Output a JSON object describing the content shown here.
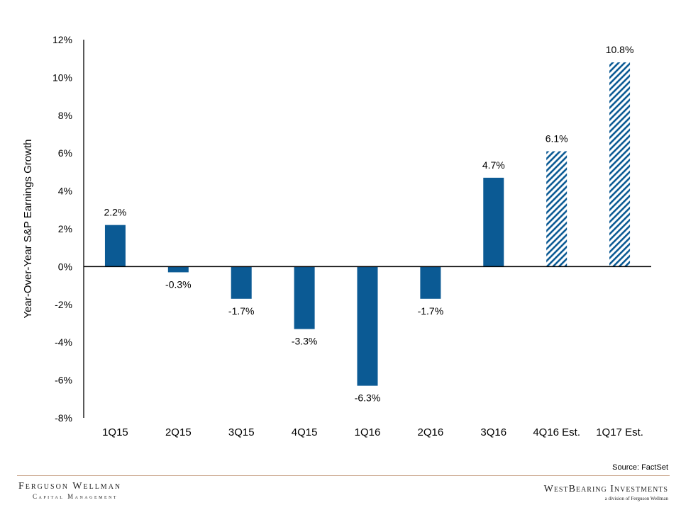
{
  "chart_data": {
    "type": "bar",
    "ylabel": "Year-Over-Year S&P Earnings Growth",
    "xlabel": "",
    "ylim": [
      -8,
      12
    ],
    "yticks": [
      12,
      10,
      8,
      6,
      4,
      2,
      0,
      -2,
      -4,
      -6,
      -8
    ],
    "ytick_labels": [
      "12%",
      "10%",
      "8%",
      "6%",
      "4%",
      "2%",
      "0%",
      "-2%",
      "-4%",
      "-6%",
      "-8%"
    ],
    "categories": [
      "1Q15",
      "2Q15",
      "3Q15",
      "4Q15",
      "1Q16",
      "2Q16",
      "3Q16",
      "4Q16 Est.",
      "1Q17 Est."
    ],
    "values": [
      2.2,
      -0.3,
      -1.7,
      -3.3,
      -6.3,
      -1.7,
      4.7,
      6.1,
      10.8
    ],
    "data_labels": [
      "2.2%",
      "-0.3%",
      "-1.7%",
      "-3.3%",
      "-6.3%",
      "-1.7%",
      "4.7%",
      "6.1%",
      "10.8%"
    ],
    "estimate_flags": [
      false,
      false,
      false,
      false,
      false,
      false,
      false,
      true,
      true
    ],
    "bar_color": "#0b5a94",
    "estimate_style": "diagonal-hatch",
    "grid": false,
    "legend": "none"
  },
  "source": "Source: FactSet",
  "logos": {
    "left_line1": "Ferguson Wellman",
    "left_line2": "Capital Management",
    "right_line1": "WestBearing Investments",
    "right_line2": "a division of Ferguson Wellman"
  },
  "colors": {
    "footer_rule": "#c9a48a"
  }
}
